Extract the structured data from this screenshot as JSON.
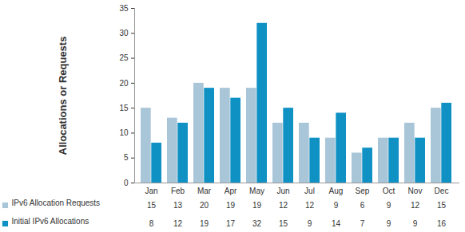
{
  "chart_data": {
    "type": "bar",
    "y_label": "Allocations or Requests",
    "categories": [
      "Jan",
      "Feb",
      "Mar",
      "Apr",
      "May",
      "Jun",
      "Jul",
      "Aug",
      "Sep",
      "Oct",
      "Nov",
      "Dec"
    ],
    "series": [
      {
        "name": "IPv6 Allocation Requests",
        "color": "#a9c6d8",
        "values": [
          15,
          13,
          20,
          19,
          19,
          12,
          12,
          9,
          6,
          9,
          12,
          15
        ]
      },
      {
        "name": "Initial IPv6 Allocations",
        "color": "#0f91c4",
        "values": [
          8,
          12,
          19,
          17,
          32,
          15,
          9,
          14,
          7,
          9,
          9,
          16
        ]
      }
    ],
    "ylim": [
      0,
      35
    ],
    "yticks": [
      0,
      5,
      10,
      15,
      20,
      25,
      30,
      35
    ],
    "grid": false,
    "legend": "bottom",
    "data_labels": true
  }
}
